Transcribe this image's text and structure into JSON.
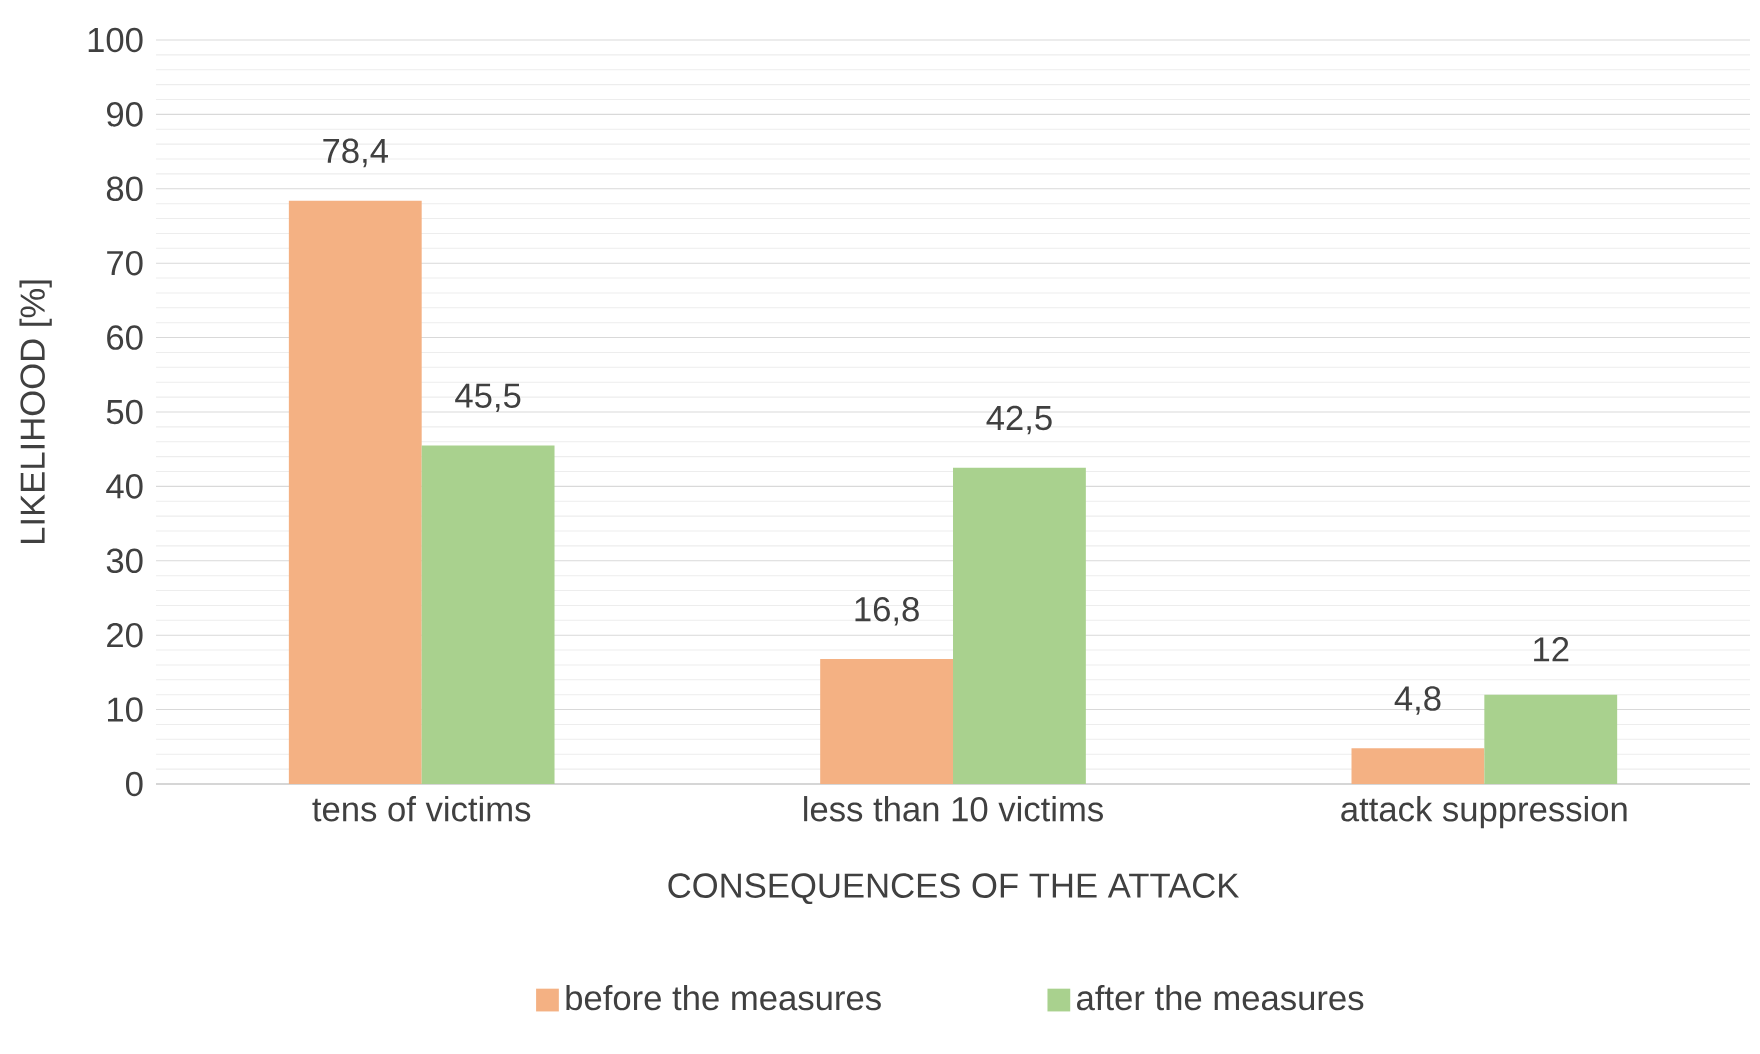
{
  "chart_data": {
    "type": "bar",
    "xlabel": "CONSEQUENCES OF THE ATTACK",
    "ylabel": "LIKELIHOOD   [%]",
    "categories": [
      "tens of victims",
      "less than 10 victims",
      "attack suppression"
    ],
    "series": [
      {
        "name": "before the measures",
        "color": "#f4b183",
        "values": [
          78.4,
          16.8,
          4.8
        ],
        "value_labels": [
          "78,4",
          "16,8",
          "4,8"
        ]
      },
      {
        "name": "after the measures",
        "color": "#a9d18e",
        "values": [
          45.5,
          42.5,
          12
        ],
        "value_labels": [
          "45,5",
          "42,5",
          "12"
        ]
      }
    ],
    "ylim": [
      0,
      100
    ],
    "yticks": [
      0,
      10,
      20,
      30,
      40,
      50,
      60,
      70,
      80,
      90,
      100
    ],
    "grid": "y",
    "legend": "bottom"
  }
}
